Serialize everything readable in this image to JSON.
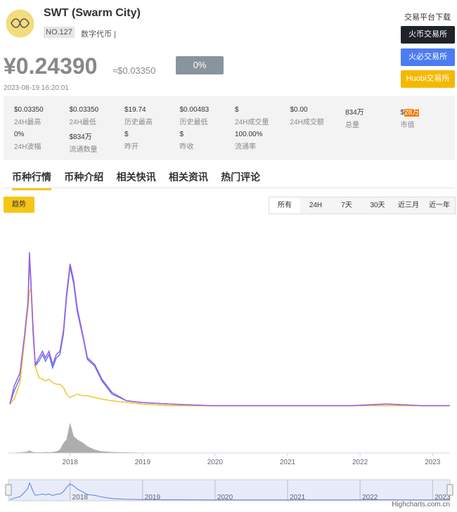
{
  "header": {
    "title": "SWT (Swarm City)",
    "rank": "NO.127",
    "tag": "数字代币",
    "price": "¥0.24390",
    "price_usd": "≈$0.03350",
    "change": "0%",
    "time": "2023-08-19 16:20:01"
  },
  "exchanges": {
    "title": "交易平台下载",
    "buttons": [
      "火币交易所",
      "火必交易所",
      "Huobi交易所"
    ]
  },
  "stats": [
    [
      {
        "value": "$0.03350",
        "label": "24H最高"
      },
      {
        "value": "$0.03350",
        "label": "24H最低"
      },
      {
        "value": "$19.74",
        "label": "历史最高"
      },
      {
        "value": "$0.00483",
        "label": "历史最低"
      },
      {
        "value": "$",
        "label": "24H成交量"
      },
      {
        "value": "$0.00",
        "label": "24H成交额"
      },
      {
        "value": "834万",
        "label": "总量"
      },
      {
        "value": "$",
        "highlight": "28万",
        "label": "市值"
      }
    ],
    [
      {
        "value": "0%",
        "label": "24H波幅"
      },
      {
        "value": "$834万",
        "label": "流通数量"
      },
      {
        "value": "$",
        "label": "昨开"
      },
      {
        "value": "$",
        "label": "昨收"
      },
      {
        "value": "100.00%",
        "label": "流通率"
      }
    ]
  ],
  "tabs": [
    "币种行情",
    "币种介绍",
    "相关快讯",
    "相关资讯",
    "热门评论"
  ],
  "trend_button": "趋势",
  "ranges": [
    "所有",
    "24H",
    "7天",
    "30天",
    "近三月",
    "近一年"
  ],
  "credit": "Highcharts.com.cn",
  "chart_data": {
    "type": "line",
    "x": [
      2017.17,
      2017.23,
      2017.31,
      2017.37,
      2017.42,
      2017.44,
      2017.46,
      2017.49,
      2017.52,
      2017.57,
      2017.62,
      2017.66,
      2017.71,
      2017.76,
      2017.81,
      2017.86,
      2017.91,
      2017.95,
      2018.0,
      2018.05,
      2018.1,
      2018.18,
      2018.24,
      2018.34,
      2018.44,
      2018.58,
      2018.78,
      2018.97,
      2019.36,
      2019.94,
      2020.91,
      2021.88,
      2022.36,
      2022.85,
      2023.24
    ],
    "series": [
      {
        "color": "#5b7bea",
        "values": [
          2,
          10,
          18,
          40,
          62,
          90,
          75,
          45,
          25,
          28,
          32,
          28,
          32,
          24,
          30,
          32,
          45,
          66,
          85,
          75,
          58,
          42,
          29,
          25,
          16,
          8,
          4,
          3,
          2,
          1,
          1,
          1,
          2,
          1,
          1
        ]
      },
      {
        "color": "#f4c430",
        "values": [
          2,
          5,
          15,
          40,
          60,
          70,
          72,
          50,
          25,
          18,
          17,
          16,
          17,
          15,
          14,
          14,
          12,
          8,
          6,
          7,
          8,
          7,
          7,
          6,
          5,
          4,
          3,
          2,
          1,
          1,
          1,
          1,
          1,
          1,
          1
        ]
      },
      {
        "color": "#9b5de5",
        "values": [
          2,
          13,
          21,
          43,
          64,
          94,
          77,
          47,
          26,
          30,
          34,
          30,
          34,
          26,
          32,
          34,
          47,
          68,
          87,
          77,
          60,
          43,
          30,
          26,
          17,
          9,
          4,
          3,
          2,
          1,
          1,
          1,
          2,
          1,
          1
        ]
      }
    ],
    "volume": {
      "color": "#999999",
      "values": [
        0,
        1,
        2,
        3,
        5,
        8,
        5,
        3,
        2,
        2,
        2,
        3,
        2,
        3,
        5,
        10,
        30,
        40,
        90,
        50,
        40,
        30,
        20,
        10,
        5,
        3,
        2,
        1,
        1,
        0,
        0,
        0,
        0,
        0,
        0
      ],
      "vlim": [
        0,
        100
      ]
    },
    "xlim": [
      2017.15,
      2023.24
    ],
    "ylim": [
      0,
      100
    ],
    "xticks": [
      2018,
      2019,
      2020,
      2021,
      2022,
      2023
    ]
  }
}
